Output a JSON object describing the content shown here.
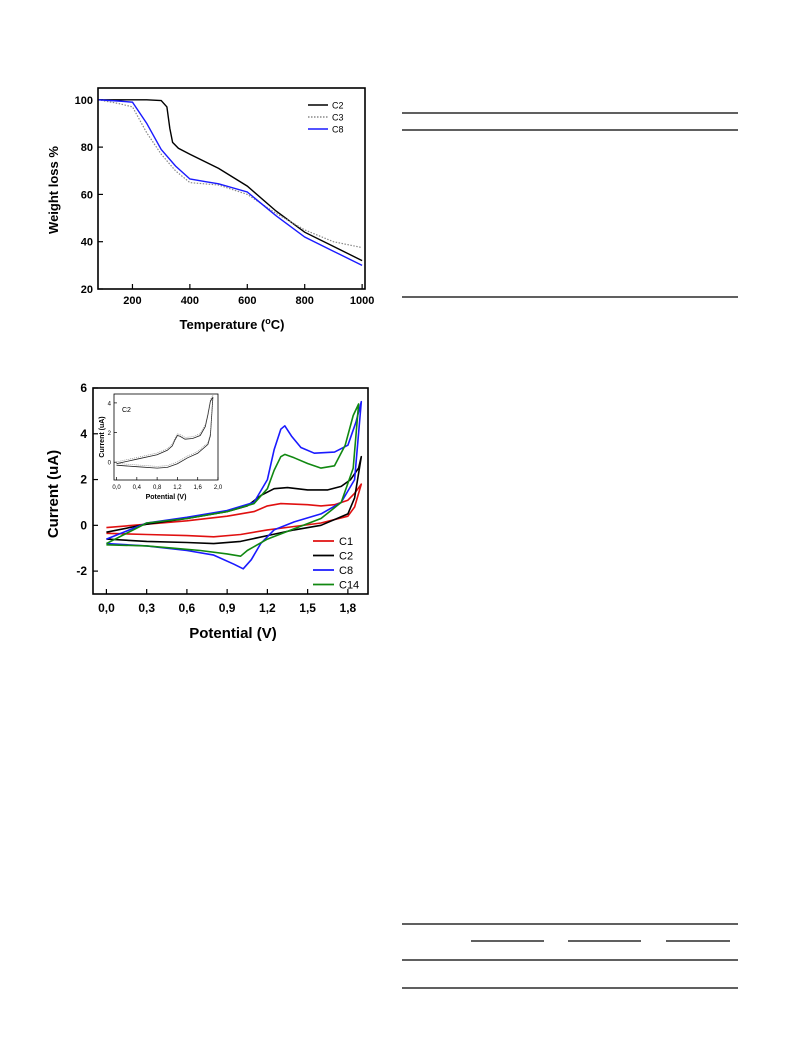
{
  "chart_data": [
    {
      "type": "line",
      "title": "",
      "xlabel_main": "Temperature (",
      "xlabel_sup": "o",
      "xlabel_end": "C)",
      "ylabel": "Weight loss %",
      "xlim": [
        80,
        1010
      ],
      "ylim": [
        20,
        105
      ],
      "x_ticks": [
        "200",
        "400",
        "600",
        "800",
        "1000"
      ],
      "y_ticks": [
        "20",
        "40",
        "60",
        "80",
        "100"
      ],
      "legend_position": "top-right",
      "series": [
        {
          "name": "C2",
          "color": "#000000",
          "style": "solid",
          "x": [
            80,
            150,
            250,
            300,
            320,
            330,
            340,
            360,
            400,
            500,
            600,
            700,
            800,
            900,
            1000
          ],
          "y": [
            100,
            100,
            100,
            99.7,
            97,
            88,
            82,
            79.5,
            77,
            71,
            63.5,
            53,
            44,
            38,
            32
          ]
        },
        {
          "name": "C3",
          "color": "#888888",
          "style": "dotted",
          "x": [
            80,
            150,
            200,
            250,
            300,
            350,
            400,
            450,
            500,
            600,
            700,
            800,
            900,
            1000
          ],
          "y": [
            100,
            98.5,
            97,
            86,
            77,
            70,
            65,
            64.5,
            64,
            60,
            52,
            45,
            40,
            37.5
          ]
        },
        {
          "name": "C8",
          "color": "#1a1aff",
          "style": "solid",
          "x": [
            80,
            150,
            200,
            250,
            300,
            350,
            400,
            450,
            500,
            600,
            700,
            800,
            900,
            1000
          ],
          "y": [
            100,
            99.5,
            99,
            90,
            79,
            72,
            66.5,
            65.5,
            64.5,
            61,
            51,
            42,
            36,
            30
          ]
        }
      ]
    },
    {
      "type": "line",
      "title": "",
      "xlabel": "Potential (V)",
      "ylabel": "Current (uA)",
      "xlim": [
        -0.1,
        1.95
      ],
      "ylim": [
        -3,
        6
      ],
      "x_ticks": [
        "0,0",
        "0,3",
        "0,6",
        "0,9",
        "1,2",
        "1,5",
        "1,8"
      ],
      "y_ticks": [
        "-2",
        "0",
        "2",
        "4",
        "6"
      ],
      "legend_position": "bottom-right",
      "series": [
        {
          "name": "C1",
          "color": "#e01010",
          "forward": {
            "x": [
              0.0,
              0.3,
              0.6,
              0.9,
              1.1,
              1.2,
              1.3,
              1.5,
              1.6,
              1.7,
              1.8,
              1.85,
              1.9
            ],
            "y": [
              -0.1,
              0.05,
              0.2,
              0.4,
              0.6,
              0.85,
              0.95,
              0.9,
              0.85,
              0.9,
              1.1,
              1.4,
              1.8
            ]
          },
          "reverse": {
            "x": [
              1.9,
              1.85,
              1.8,
              1.6,
              1.4,
              1.2,
              1.0,
              0.8,
              0.6,
              0.3,
              0.0
            ],
            "y": [
              1.8,
              0.8,
              0.4,
              0.1,
              -0.05,
              -0.2,
              -0.4,
              -0.5,
              -0.45,
              -0.4,
              -0.35
            ]
          }
        },
        {
          "name": "C2",
          "color": "#000000",
          "forward": {
            "x": [
              0.0,
              0.3,
              0.6,
              0.9,
              1.05,
              1.15,
              1.25,
              1.35,
              1.5,
              1.65,
              1.75,
              1.82,
              1.88,
              1.9
            ],
            "y": [
              -0.3,
              0.05,
              0.3,
              0.6,
              0.85,
              1.3,
              1.6,
              1.65,
              1.55,
              1.55,
              1.7,
              2.0,
              2.5,
              3.0
            ]
          },
          "reverse": {
            "x": [
              1.9,
              1.85,
              1.8,
              1.6,
              1.4,
              1.2,
              1.0,
              0.8,
              0.6,
              0.3,
              0.0
            ],
            "y": [
              3.0,
              1.2,
              0.5,
              0.0,
              -0.2,
              -0.45,
              -0.7,
              -0.8,
              -0.75,
              -0.7,
              -0.6
            ]
          }
        },
        {
          "name": "C8",
          "color": "#1a1aff",
          "forward": {
            "x": [
              0.0,
              0.3,
              0.6,
              0.9,
              1.1,
              1.2,
              1.25,
              1.3,
              1.33,
              1.38,
              1.45,
              1.55,
              1.7,
              1.8,
              1.86,
              1.9
            ],
            "y": [
              -0.6,
              0.1,
              0.35,
              0.65,
              1.0,
              2.0,
              3.3,
              4.2,
              4.35,
              3.9,
              3.4,
              3.15,
              3.2,
              3.5,
              4.5,
              5.4
            ]
          },
          "reverse": {
            "x": [
              1.9,
              1.85,
              1.75,
              1.6,
              1.4,
              1.25,
              1.15,
              1.08,
              1.02,
              0.95,
              0.8,
              0.6,
              0.3,
              0.0
            ],
            "y": [
              5.4,
              2.0,
              1.0,
              0.5,
              0.15,
              -0.2,
              -0.8,
              -1.5,
              -1.9,
              -1.7,
              -1.3,
              -1.1,
              -0.9,
              -0.8
            ]
          }
        },
        {
          "name": "C14",
          "color": "#118811",
          "forward": {
            "x": [
              0.0,
              0.3,
              0.6,
              0.9,
              1.1,
              1.2,
              1.25,
              1.3,
              1.33,
              1.4,
              1.5,
              1.6,
              1.7,
              1.78,
              1.84,
              1.88
            ],
            "y": [
              -0.8,
              0.1,
              0.3,
              0.6,
              0.95,
              1.6,
              2.4,
              3.0,
              3.1,
              2.95,
              2.7,
              2.5,
              2.6,
              3.5,
              4.8,
              5.3
            ]
          },
          "reverse": {
            "x": [
              1.88,
              1.84,
              1.75,
              1.6,
              1.4,
              1.2,
              1.05,
              1.0,
              0.9,
              0.7,
              0.5,
              0.3,
              0.0
            ],
            "y": [
              5.3,
              2.5,
              1.0,
              0.3,
              -0.15,
              -0.6,
              -1.1,
              -1.35,
              -1.25,
              -1.1,
              -1.0,
              -0.9,
              -0.85
            ]
          }
        }
      ],
      "inset": {
        "label": "C2",
        "xlabel": "Potential (V)",
        "ylabel": "Current (uA)",
        "xlim": [
          -0.05,
          2.0
        ],
        "ylim": [
          -1.2,
          4.6
        ],
        "x_ticks": [
          "0,0",
          "0,4",
          "0,8",
          "1,2",
          "1,6",
          "2,0"
        ],
        "y_ticks": [
          "0",
          "2",
          "4"
        ],
        "forward": {
          "x": [
            0.0,
            0.4,
            0.8,
            1.0,
            1.1,
            1.15,
            1.2,
            1.25,
            1.35,
            1.5,
            1.65,
            1.75,
            1.8,
            1.85,
            1.9
          ],
          "y": [
            -0.1,
            0.2,
            0.5,
            0.8,
            1.1,
            1.5,
            1.8,
            1.75,
            1.55,
            1.6,
            1.8,
            2.4,
            3.2,
            4.1,
            4.4
          ]
        },
        "reverse": {
          "x": [
            1.9,
            1.85,
            1.8,
            1.6,
            1.4,
            1.2,
            1.0,
            0.8,
            0.4,
            0.0
          ],
          "y": [
            4.4,
            1.8,
            1.2,
            0.6,
            0.3,
            -0.1,
            -0.35,
            -0.4,
            -0.3,
            -0.2
          ]
        }
      }
    }
  ]
}
